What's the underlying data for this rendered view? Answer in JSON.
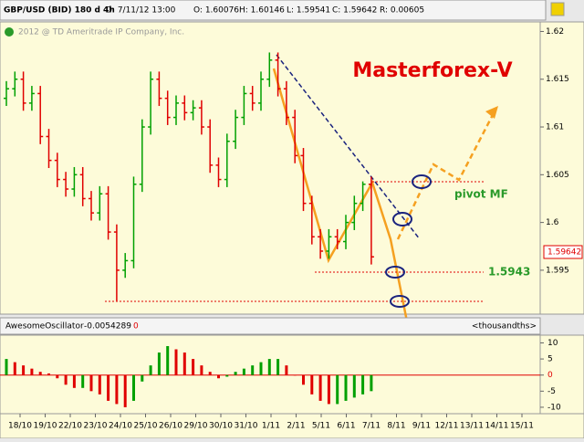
{
  "header": {
    "symbol": "GBP/USD (BID) 180 d 4h",
    "date": "D: 7/11/12 13:00",
    "open": "O: 1.60076",
    "high": "H: 1.60146",
    "low": "L: 1.59541",
    "close": "C: 1.59642",
    "range": "R: 0.00605"
  },
  "chart_data": [
    {
      "type": "candlestick",
      "title": "Masterforex-V",
      "copyright": "2012 @ TD Ameritrade IP Company, Inc.",
      "up_color": "#00a000",
      "down_color": "#e00000",
      "open": [
        1.613,
        1.614,
        1.615,
        1.6125,
        1.6135,
        1.609,
        1.6065,
        1.6045,
        1.6035,
        1.605,
        1.6025,
        1.601,
        1.603,
        1.599,
        1.595,
        1.596,
        1.604,
        1.61,
        1.615,
        1.613,
        1.611,
        1.6125,
        1.6115,
        1.612,
        1.61,
        1.606,
        1.6045,
        1.6085,
        1.611,
        1.6135,
        1.6125,
        1.615,
        1.617,
        1.614,
        1.611,
        1.607,
        1.602,
        1.5985,
        1.597,
        1.5985,
        1.598,
        1.6,
        1.602,
        1.604
      ],
      "high": [
        1.6148,
        1.6158,
        1.6158,
        1.6143,
        1.6143,
        1.6098,
        1.6073,
        1.6053,
        1.6058,
        1.6058,
        1.6033,
        1.6038,
        1.6038,
        1.5998,
        1.5968,
        1.6048,
        1.6108,
        1.6158,
        1.6158,
        1.6138,
        1.6133,
        1.6133,
        1.6128,
        1.6128,
        1.6108,
        1.6068,
        1.6093,
        1.6118,
        1.6143,
        1.6143,
        1.6158,
        1.6178,
        1.6178,
        1.6148,
        1.6118,
        1.6078,
        1.6028,
        1.5993,
        1.5993,
        1.5993,
        1.6008,
        1.6028,
        1.6043,
        1.6048
      ],
      "low": [
        1.6122,
        1.6132,
        1.6117,
        1.6117,
        1.6082,
        1.6057,
        1.6037,
        1.6027,
        1.6027,
        1.6017,
        1.6002,
        1.6002,
        1.5982,
        1.5918,
        1.5942,
        1.5952,
        1.6032,
        1.6092,
        1.6122,
        1.6102,
        1.6102,
        1.6107,
        1.6107,
        1.6092,
        1.6052,
        1.6037,
        1.6037,
        1.6077,
        1.6102,
        1.6117,
        1.6117,
        1.6142,
        1.6132,
        1.6102,
        1.6062,
        1.6012,
        1.5977,
        1.5962,
        1.5962,
        1.5972,
        1.5972,
        1.5992,
        1.6012,
        1.5956
      ],
      "close": [
        1.614,
        1.615,
        1.6125,
        1.6135,
        1.609,
        1.6065,
        1.6045,
        1.6035,
        1.605,
        1.6025,
        1.601,
        1.603,
        1.599,
        1.595,
        1.596,
        1.604,
        1.61,
        1.615,
        1.613,
        1.611,
        1.6125,
        1.6115,
        1.612,
        1.61,
        1.606,
        1.6045,
        1.6085,
        1.611,
        1.6135,
        1.6125,
        1.615,
        1.617,
        1.614,
        1.611,
        1.607,
        1.602,
        1.5985,
        1.597,
        1.5985,
        1.598,
        1.6,
        1.602,
        1.604,
        1.5964
      ],
      "ylim": [
        1.5904,
        1.621
      ],
      "yticks": [
        1.62,
        1.615,
        1.61,
        1.605,
        1.6,
        1.595
      ],
      "last_price_label": "1.59642",
      "annotations": {
        "pivot": "pivot MF",
        "level": "1.5943"
      }
    },
    {
      "type": "bar",
      "title": "AwesomeOscillator",
      "value_text": "-0.0054289",
      "flag": "0",
      "unit": "<thousandths>",
      "up_color": "#00a000",
      "down_color": "#e00000",
      "values": [
        5,
        4,
        3,
        2,
        1,
        0.5,
        -1,
        -3,
        -4,
        -4,
        -5,
        -6,
        -8,
        -9,
        -10,
        -8,
        -2,
        3,
        7,
        9,
        8,
        7,
        5,
        3,
        1,
        -1,
        -0.5,
        1,
        2,
        3,
        4,
        5,
        5,
        3,
        0,
        -3,
        -6,
        -8,
        -9,
        -9,
        -8,
        -7,
        -6,
        -5
      ],
      "ylim": [
        -12,
        12.4
      ],
      "yticks": [
        10,
        5,
        0,
        -5,
        -10
      ],
      "x_tick_labels": [
        "18/10",
        "19/10",
        "22/10",
        "23/10",
        "24/10",
        "25/10",
        "26/10",
        "29/10",
        "30/10",
        "31/10",
        "1/11",
        "2/11",
        "5/11",
        "6/11",
        "7/11",
        "8/11",
        "9/11",
        "12/11",
        "13/11",
        "14/11",
        "15/11"
      ]
    }
  ]
}
